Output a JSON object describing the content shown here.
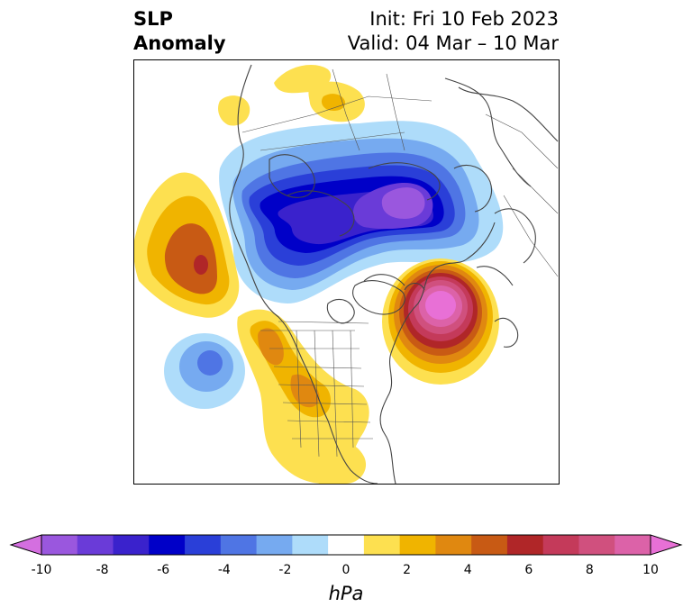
{
  "title": {
    "line1": "SLP",
    "line2": "Anomaly"
  },
  "dates": {
    "init": "Init: Fri 10 Feb 2023",
    "valid": "Valid: 04 Mar – 10 Mar"
  },
  "colorbar": {
    "units": "hPa",
    "ticks": [
      "-10",
      "-8",
      "-6",
      "-4",
      "-2",
      "0",
      "2",
      "4",
      "6",
      "8",
      "10"
    ],
    "colors": [
      "#d46fe0",
      "#9a57de",
      "#6a3bd8",
      "#3a22cc",
      "#0000c8",
      "#2a3fd8",
      "#4f75e4",
      "#76aaf0",
      "#aedcfa",
      "#ffffff",
      "#fde050",
      "#f0b400",
      "#e08810",
      "#c85a14",
      "#b02628",
      "#c43a5a",
      "#d0507e",
      "#dc62a8",
      "#e870d6"
    ]
  },
  "map": {
    "anomalies": [
      {
        "name": "arctic-low",
        "sign": "negative",
        "peak_hPa": -10
      },
      {
        "name": "north-atlantic-high",
        "sign": "positive",
        "peak_hPa": 10
      },
      {
        "name": "north-pacific-high",
        "sign": "positive",
        "peak_hPa": 6
      },
      {
        "name": "east-pacific-low",
        "sign": "negative",
        "peak_hPa": -4
      },
      {
        "name": "western-north-america-high",
        "sign": "positive",
        "peak_hPa": 4
      },
      {
        "name": "siberia-high",
        "sign": "positive",
        "peak_hPa": 2
      }
    ]
  }
}
